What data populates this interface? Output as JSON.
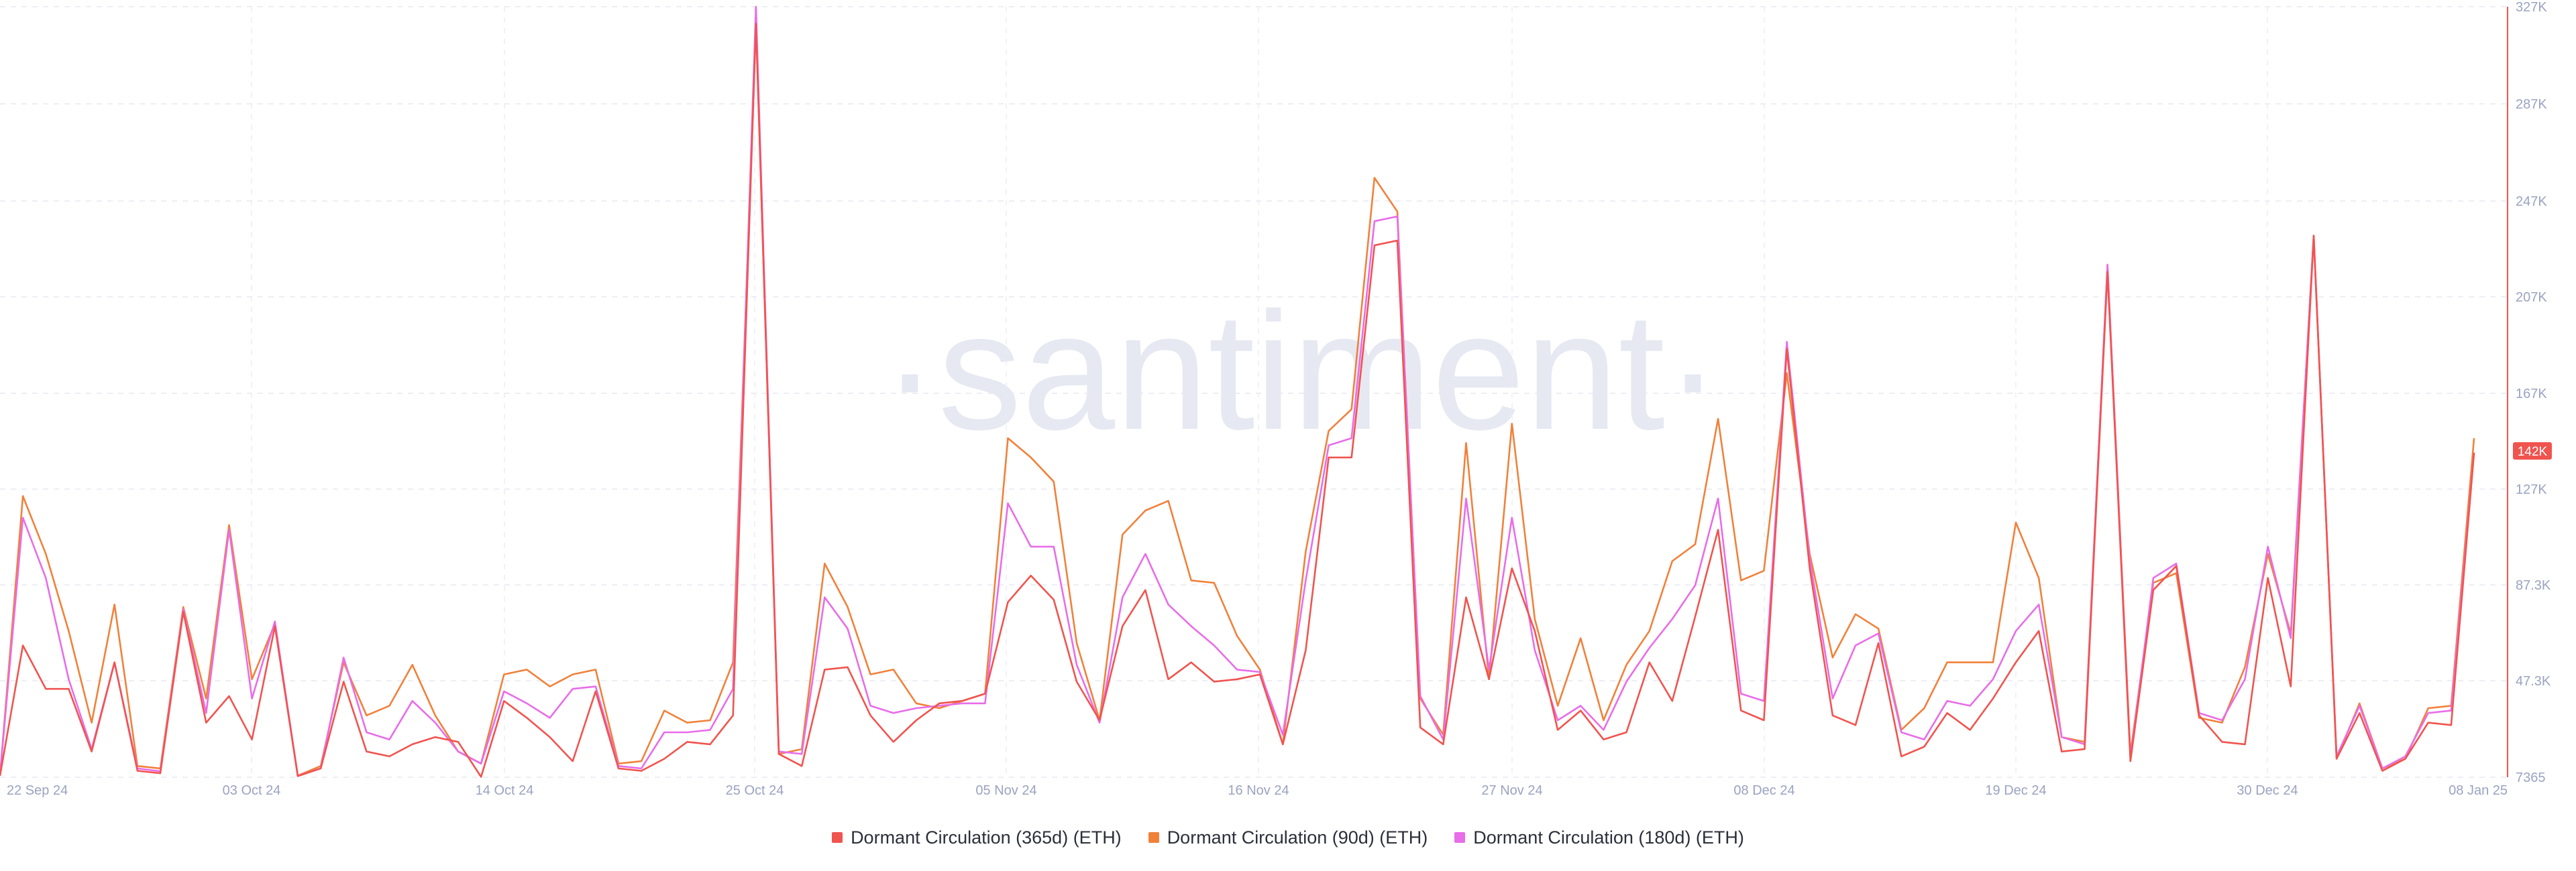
{
  "chart_data": {
    "type": "line",
    "watermark": "·santiment·",
    "x_tick_labels": [
      "22 Sep 24",
      "03 Oct 24",
      "14 Oct 24",
      "25 Oct 24",
      "05 Nov 24",
      "16 Nov 24",
      "27 Nov 24",
      "08 Dec 24",
      "19 Dec 24",
      "30 Dec 24",
      "08 Jan 25"
    ],
    "y_tick_labels": [
      "327K",
      "287K",
      "247K",
      "207K",
      "167K",
      "127K",
      "87.3K",
      "47.3K",
      "7365"
    ],
    "ylim": [
      7365,
      327000
    ],
    "xlim": [
      "2024-09-22",
      "2025-01-08"
    ],
    "current_value_label": "142K",
    "grid": true,
    "legend_position": "bottom-center",
    "series": [
      {
        "name": "Dormant Circulation (365d) (ETH)",
        "color": "#f0544f",
        "values": [
          8000,
          62000,
          44000,
          44000,
          18000,
          55000,
          10000,
          9000,
          76000,
          30000,
          41000,
          23000,
          70000,
          7800,
          11000,
          47000,
          18000,
          16000,
          21000,
          24000,
          22000,
          7500,
          39000,
          32000,
          24000,
          14000,
          43000,
          11000,
          10000,
          15000,
          22000,
          21000,
          33000,
          320000,
          17000,
          12000,
          52000,
          53000,
          33000,
          22000,
          31000,
          38000,
          39000,
          42000,
          80000,
          91000,
          81000,
          47000,
          31000,
          70000,
          85000,
          48000,
          55000,
          47000,
          48000,
          50000,
          21000,
          60000,
          140000,
          140000,
          228000,
          230000,
          28000,
          21000,
          82000,
          48000,
          94000,
          68000,
          27000,
          35000,
          23000,
          26000,
          55000,
          39000,
          74000,
          110000,
          35000,
          31000,
          185000,
          94000,
          33000,
          29000,
          63000,
          16000,
          20000,
          34000,
          27000,
          40000,
          55000,
          68000,
          18000,
          19000,
          217000,
          14000,
          85000,
          95000,
          33000,
          22000,
          21000,
          90000,
          45000,
          232000,
          15000,
          34000,
          10000,
          15000,
          30000,
          29000,
          142000
        ]
      },
      {
        "name": "Dormant Circulation (90d) (ETH)",
        "color": "#f0813b",
        "values": [
          8000,
          124000,
          100000,
          68000,
          30000,
          79000,
          12000,
          11000,
          78000,
          40000,
          112000,
          48000,
          71000,
          8000,
          12000,
          55000,
          33000,
          37000,
          54000,
          33000,
          18000,
          13000,
          50000,
          52000,
          45000,
          50000,
          52000,
          13000,
          14000,
          35000,
          30000,
          31000,
          55000,
          320000,
          17000,
          19000,
          96000,
          78000,
          50000,
          52000,
          38000,
          36000,
          39000,
          42000,
          148000,
          140000,
          130000,
          63000,
          31000,
          108000,
          118000,
          122000,
          89000,
          88000,
          66000,
          52000,
          21000,
          101000,
          151000,
          160000,
          256000,
          242000,
          40000,
          25000,
          146000,
          48000,
          154000,
          73000,
          37000,
          65000,
          31000,
          54000,
          68000,
          97000,
          104000,
          156000,
          89000,
          93000,
          175000,
          100000,
          57000,
          75000,
          69000,
          27000,
          36000,
          55000,
          55000,
          55000,
          113000,
          90000,
          24000,
          22000,
          220000,
          17000,
          88000,
          92000,
          32000,
          30000,
          53000,
          100000,
          67000,
          232000,
          15000,
          38000,
          11000,
          15000,
          36000,
          37000,
          148000
        ]
      },
      {
        "name": "Dormant Circulation (180d) (ETH)",
        "color": "#e86de8",
        "values": [
          8000,
          115000,
          90000,
          48000,
          19000,
          55000,
          11000,
          9800,
          77000,
          34000,
          110000,
          40000,
          72000,
          7900,
          11000,
          57000,
          26000,
          23000,
          39000,
          30000,
          18000,
          13000,
          43000,
          38000,
          32000,
          44000,
          45000,
          12000,
          11000,
          26000,
          26000,
          27000,
          44000,
          327000,
          18000,
          17000,
          82000,
          69000,
          37000,
          34000,
          36000,
          37000,
          38000,
          38000,
          121000,
          103000,
          103000,
          54000,
          30000,
          82000,
          100000,
          79000,
          70000,
          62000,
          52000,
          51000,
          25000,
          89000,
          145000,
          148000,
          238000,
          240000,
          41000,
          23000,
          123000,
          52000,
          115000,
          60000,
          31000,
          37000,
          27000,
          47000,
          61000,
          73000,
          87000,
          123000,
          42000,
          39000,
          188000,
          98000,
          40000,
          62000,
          67000,
          26000,
          23000,
          39000,
          37000,
          48000,
          68000,
          79000,
          24000,
          21000,
          220000,
          15000,
          90000,
          96000,
          34000,
          31000,
          48000,
          103000,
          65000,
          232000,
          16000,
          37000,
          11000,
          16000,
          34000,
          35000,
          142000
        ]
      }
    ]
  }
}
